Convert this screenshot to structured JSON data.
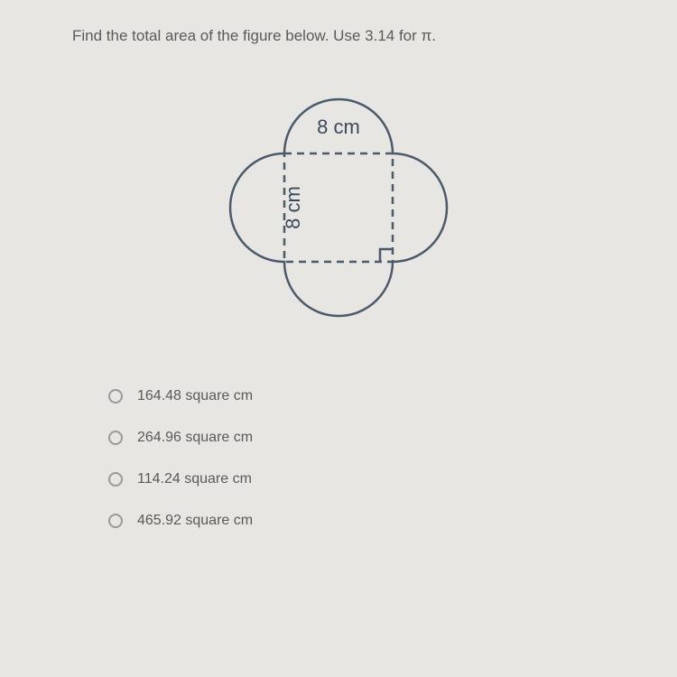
{
  "question": "Find the total area of the figure below. Use 3.14 for π.",
  "figure": {
    "label_top": "8 cm",
    "label_left": "8 cm",
    "stroke_color": "#4a5a6a",
    "stroke_width": 2.5,
    "dash_pattern": "8,6",
    "square_side": 120,
    "semicircle_radius": 60
  },
  "options": [
    {
      "label": "164.48 square cm"
    },
    {
      "label": "264.96 square cm"
    },
    {
      "label": "114.24 square cm"
    },
    {
      "label": "465.92 square cm"
    }
  ]
}
